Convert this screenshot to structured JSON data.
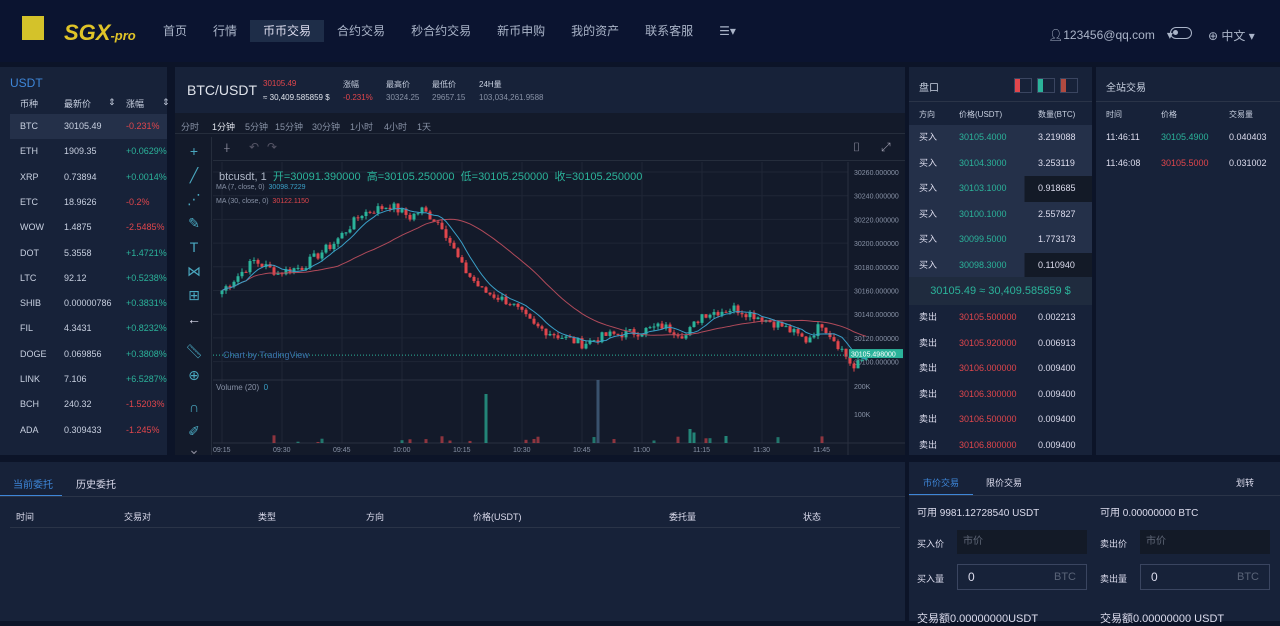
{
  "header": {
    "brand": "SGX",
    "brand_suffix": "-pro",
    "nav": [
      "首页",
      "行情",
      "币币交易",
      "合约交易",
      "秒合约交易",
      "新币申购",
      "我的资产",
      "联系客服"
    ],
    "active_nav": 2,
    "user": "123456@qq.com",
    "language": "中文"
  },
  "market": {
    "title": "USDT",
    "columns": [
      "币种",
      "最新价",
      "涨幅"
    ],
    "rows": [
      {
        "sym": "BTC",
        "price": "30105.49",
        "chg": "-0.231%",
        "up": false
      },
      {
        "sym": "ETH",
        "price": "1909.35",
        "chg": "+0.0629%",
        "up": true
      },
      {
        "sym": "XRP",
        "price": "0.73894",
        "chg": "+0.0014%",
        "up": true
      },
      {
        "sym": "ETC",
        "price": "18.9626",
        "chg": "-0.2%",
        "up": false
      },
      {
        "sym": "WOW",
        "price": "1.4875",
        "chg": "-2.5485%",
        "up": false
      },
      {
        "sym": "DOT",
        "price": "5.3558",
        "chg": "+1.4721%",
        "up": true
      },
      {
        "sym": "LTC",
        "price": "92.12",
        "chg": "+0.5238%",
        "up": true
      },
      {
        "sym": "SHIB",
        "price": "0.00000786",
        "chg": "+0.3831%",
        "up": true
      },
      {
        "sym": "FIL",
        "price": "4.3431",
        "chg": "+0.8232%",
        "up": true
      },
      {
        "sym": "DOGE",
        "price": "0.069856",
        "chg": "+0.3808%",
        "up": true
      },
      {
        "sym": "LINK",
        "price": "7.106",
        "chg": "+6.5287%",
        "up": true
      },
      {
        "sym": "BCH",
        "price": "240.32",
        "chg": "-1.5203%",
        "up": false
      },
      {
        "sym": "ADA",
        "price": "0.309433",
        "chg": "-1.245%",
        "up": false
      }
    ]
  },
  "ticker": {
    "symbol": "BTC/USDT",
    "price": "30105.49",
    "usd": "≈ 30,409.585859 $",
    "change_label": "涨幅",
    "change": "-0.231%",
    "high_label": "最高价",
    "high": "30324.25",
    "low_label": "最低价",
    "low": "29657.15",
    "vol_label": "24H量",
    "vol": "103,034,261.9588"
  },
  "timeframes": [
    "分时",
    "1分钟",
    "5分钟",
    "15分钟",
    "30分钟",
    "1小时",
    "4小时",
    "1天"
  ],
  "active_tf": 1,
  "chart_legend": {
    "title": "btcusdt, 1",
    "open": "开=30091.390000",
    "high": "高=30105.250000",
    "low": "低=30105.250000",
    "close": "收=30105.250000",
    "ma7_label": "MA (7, close, 0)",
    "ma7": "30098.7229",
    "ma30_label": "MA (30, close, 0)",
    "ma30": "30122.1150",
    "volume_label": "Volume (20)",
    "volume": "0",
    "watermark": "Chart by TradingView",
    "last_price": "30105.498000"
  },
  "chart_data": {
    "type": "candlestick",
    "yticks": [
      "30260.000000",
      "30240.000000",
      "30220.000000",
      "30200.000000",
      "30180.000000",
      "30160.000000",
      "30140.000000",
      "30120.000000",
      "30100.000000"
    ],
    "ylim": [
      30100,
      30260
    ],
    "vol_ticks": [
      "200K",
      "100K"
    ],
    "xticks": [
      "09:15",
      "09:30",
      "09:45",
      "10:00",
      "10:15",
      "10:30",
      "10:45",
      "11:00",
      "11:15",
      "11:30",
      "11:45"
    ],
    "keypoints_minute_price": [
      [
        0,
        30160
      ],
      [
        8,
        30185
      ],
      [
        14,
        30175
      ],
      [
        20,
        30180
      ],
      [
        28,
        30200
      ],
      [
        35,
        30225
      ],
      [
        42,
        30232
      ],
      [
        47,
        30222
      ],
      [
        50,
        30228
      ],
      [
        55,
        30215
      ],
      [
        60,
        30180
      ],
      [
        65,
        30160
      ],
      [
        72,
        30150
      ],
      [
        78,
        30130
      ],
      [
        84,
        30122
      ],
      [
        90,
        30115
      ],
      [
        96,
        30122
      ],
      [
        104,
        30125
      ],
      [
        110,
        30130
      ],
      [
        116,
        30122
      ],
      [
        120,
        30140
      ],
      [
        128,
        30145
      ],
      [
        134,
        30138
      ],
      [
        140,
        30130
      ],
      [
        146,
        30118
      ],
      [
        150,
        30132
      ],
      [
        155,
        30110
      ],
      [
        158,
        30094
      ],
      [
        161,
        30105
      ]
    ],
    "volume_spikes_minute_value": [
      [
        66,
        140
      ],
      [
        94,
        180
      ],
      [
        117,
        40
      ],
      [
        118,
        30
      ],
      [
        126,
        20
      ]
    ]
  },
  "orderbook": {
    "title": "盘口",
    "columns": [
      "方向",
      "价格(USDT)",
      "数量(BTC)"
    ],
    "bids": [
      {
        "side": "买入",
        "price": "30105.4000",
        "qty": "3.219088"
      },
      {
        "side": "买入",
        "price": "30104.3000",
        "qty": "3.253119"
      },
      {
        "side": "买入",
        "price": "30103.1000",
        "qty": "0.918685"
      },
      {
        "side": "买入",
        "price": "30100.1000",
        "qty": "2.557827"
      },
      {
        "side": "买入",
        "price": "30099.5000",
        "qty": "1.773173"
      },
      {
        "side": "买入",
        "price": "30098.3000",
        "qty": "0.110940"
      }
    ],
    "mid": "30105.49 ≈ 30,409.585859 $",
    "asks": [
      {
        "side": "卖出",
        "price": "30105.500000",
        "qty": "0.002213"
      },
      {
        "side": "卖出",
        "price": "30105.920000",
        "qty": "0.006913"
      },
      {
        "side": "卖出",
        "price": "30106.000000",
        "qty": "0.009400"
      },
      {
        "side": "卖出",
        "price": "30106.300000",
        "qty": "0.009400"
      },
      {
        "side": "卖出",
        "price": "30106.500000",
        "qty": "0.009400"
      },
      {
        "side": "卖出",
        "price": "30106.800000",
        "qty": "0.009400"
      }
    ]
  },
  "trades": {
    "title": "全站交易",
    "columns": [
      "时间",
      "价格",
      "交易量"
    ],
    "rows": [
      {
        "time": "11:46:11",
        "price": "30105.4900",
        "qty": "0.040403",
        "up": true
      },
      {
        "time": "11:46:08",
        "price": "30105.5000",
        "qty": "0.031002",
        "up": false
      }
    ]
  },
  "orders": {
    "tabs": [
      "当前委托",
      "历史委托"
    ],
    "columns": [
      "时间",
      "交易对",
      "类型",
      "方向",
      "价格(USDT)",
      "委托量",
      "状态"
    ]
  },
  "form": {
    "tabs": [
      "市价交易",
      "限价交易"
    ],
    "transfer": "划转",
    "buy": {
      "avail": "可用 9981.12728540 USDT",
      "price_label": "买入价",
      "price_ph": "市价",
      "qty_label": "买入量",
      "qty": "0",
      "unit": "BTC",
      "total": "交易额0.00000000USDT"
    },
    "sell": {
      "avail": "可用 0.00000000 BTC",
      "price_label": "卖出价",
      "price_ph": "市价",
      "qty_label": "卖出量",
      "qty": "0",
      "unit": "BTC",
      "total": "交易额0.00000000 USDT"
    }
  },
  "colors": {
    "up": "#2bb39a",
    "down": "#e0464c",
    "accent": "#3e86d8",
    "ma7": "#3aa0c8",
    "ma30": "#b04a5a"
  }
}
